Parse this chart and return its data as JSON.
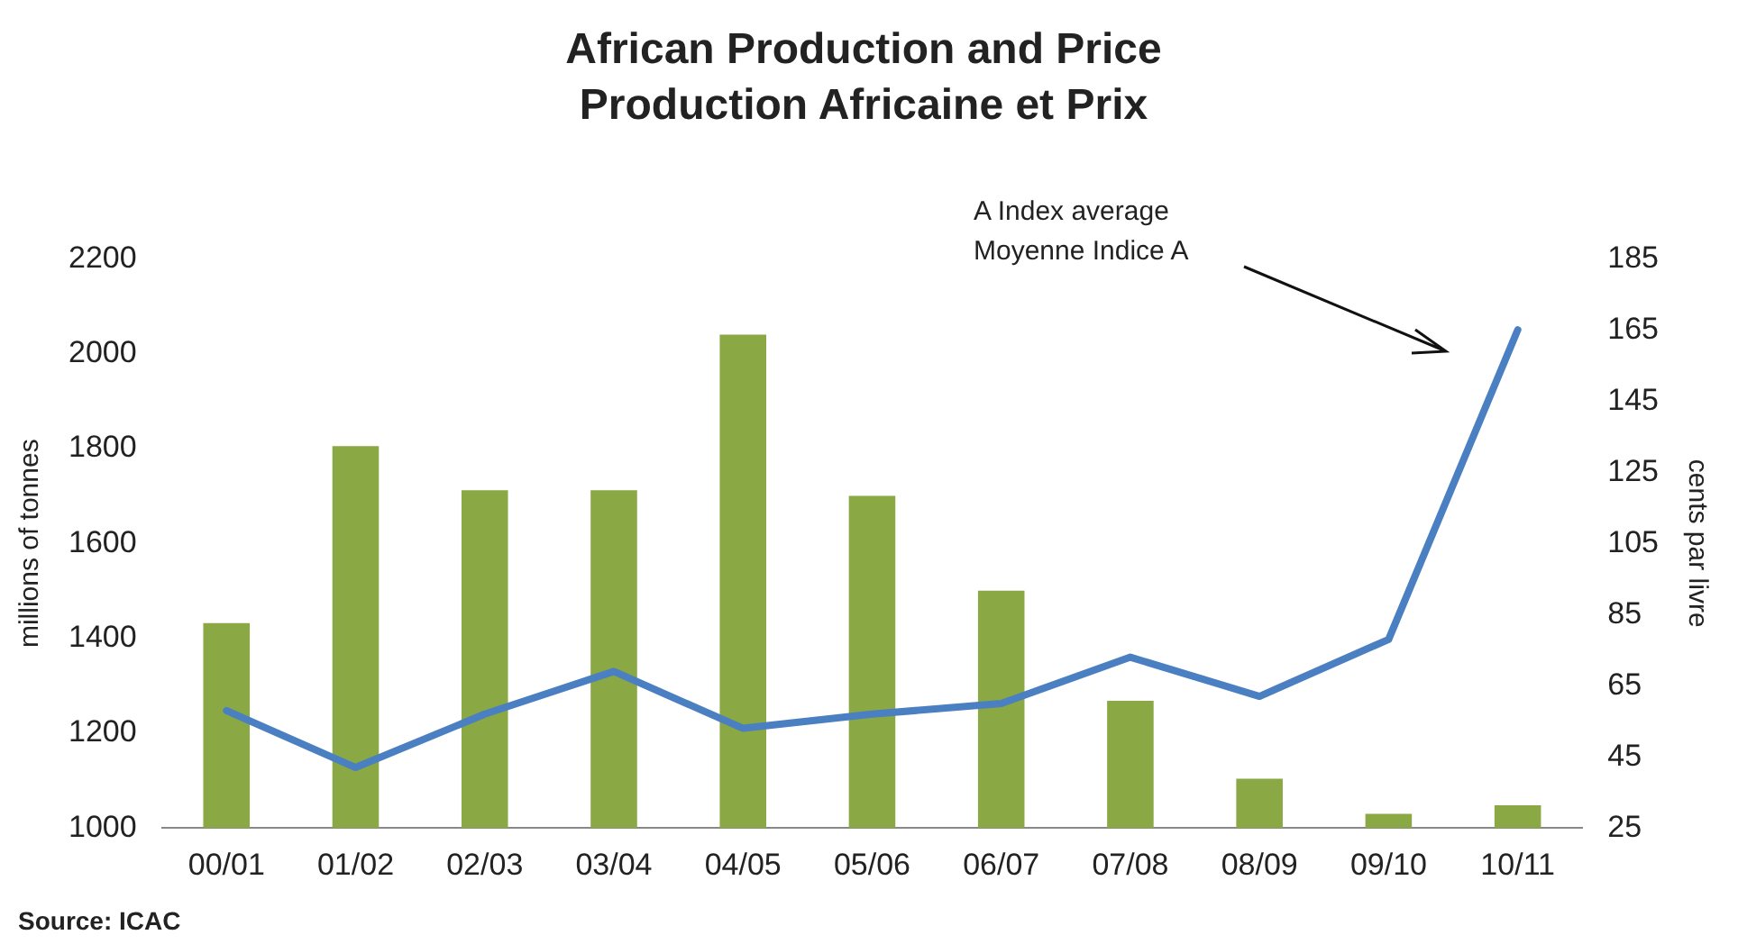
{
  "chart_data": {
    "type": "bar",
    "title": "African Production and Price",
    "subtitle": "Production Africaine et Prix",
    "ylabel": "millions of tonnes",
    "y2label": "cents par livre",
    "categories": [
      "00/01",
      "01/02",
      "02/03",
      "03/04",
      "04/05",
      "05/06",
      "06/07",
      "07/08",
      "08/09",
      "09/10",
      "10/11"
    ],
    "series": [
      {
        "color": "#8aa844",
        "values": [
          1432,
          1805,
          1712,
          1712,
          2040,
          1700,
          1500,
          1268,
          1104,
          1030,
          1048
        ]
      },
      {
        "type": "line",
        "axis": "y2",
        "color": "#4a7fc1",
        "values": [
          58,
          42,
          57,
          69,
          53,
          57,
          60,
          73,
          62,
          78,
          165
        ]
      }
    ],
    "ylim": [
      1000,
      2200
    ],
    "yticks": [
      1000,
      1200,
      1400,
      1600,
      1800,
      2000,
      2200
    ],
    "y2lim": [
      25,
      185
    ],
    "y2ticks": [
      25,
      45,
      65,
      85,
      105,
      125,
      145,
      165,
      185
    ],
    "grid": false,
    "legend": false,
    "marker": "none",
    "line_style": "solid",
    "annotations": [
      "A Index average",
      "Moyenne Indice A",
      "Source: ICAC"
    ]
  }
}
